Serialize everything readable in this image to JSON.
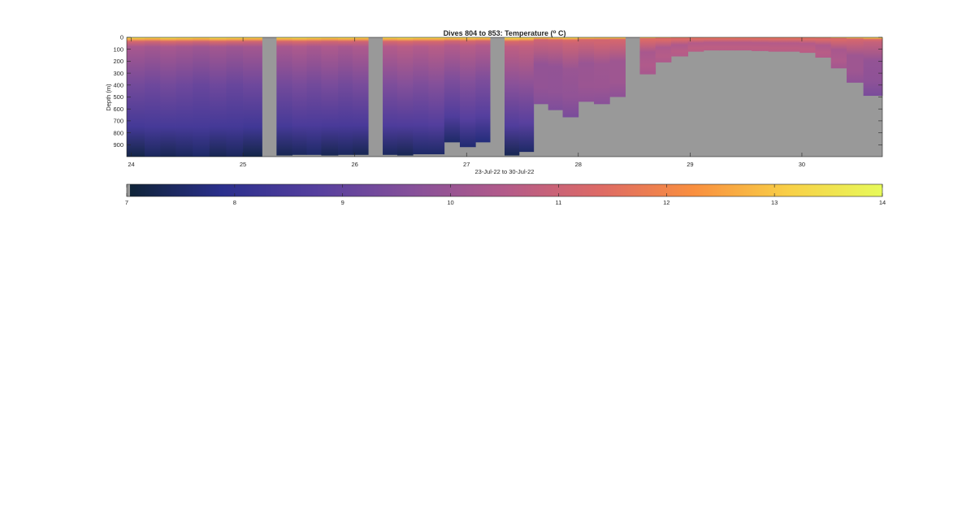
{
  "chart_data": {
    "type": "heatmap",
    "title_main": "Dives 804 to 853: Temperature (",
    "title_unit_sup": "o",
    "title_unit": " C)",
    "xlabel": "23-Jul-22 to 30-Jul-22",
    "ylabel": "Depth (m)",
    "x_range": [
      23.96,
      30.72
    ],
    "y_range": [
      0,
      1000
    ],
    "y_reversed": true,
    "x_ticks": [
      24,
      25,
      26,
      27,
      28,
      29,
      30
    ],
    "y_ticks": [
      0,
      100,
      200,
      300,
      400,
      500,
      600,
      700,
      800,
      900
    ],
    "y_tick_labels": [
      "0",
      "100",
      "200",
      "300",
      "400",
      "500",
      "600",
      "700",
      "800",
      "900"
    ],
    "colorbar": {
      "range": [
        7,
        14
      ],
      "ticks": [
        7,
        8,
        9,
        10,
        11,
        12,
        13,
        14
      ],
      "colors": [
        "#0e2335",
        "#2a2f8c",
        "#553f9e",
        "#85509a",
        "#b35b8a",
        "#dd6a66",
        "#f98f3f",
        "#f8cf47",
        "#e7fa5a"
      ],
      "nodata_color": "#999999"
    },
    "nodata_color": "#999999",
    "gap_intervals_days": [
      [
        25.17,
        25.3
      ],
      [
        26.12,
        26.25
      ],
      [
        27.21,
        27.34
      ],
      [
        28.42,
        28.55
      ]
    ],
    "dive_profiles": {
      "x_start": [
        23.96,
        24.12,
        24.26,
        24.4,
        24.55,
        24.7,
        24.85,
        25.0,
        25.3,
        25.44,
        25.57,
        25.7,
        25.85,
        25.98,
        26.25,
        26.38,
        26.52,
        26.66,
        26.8,
        26.94,
        27.08,
        27.34,
        27.47,
        27.6,
        27.73,
        27.86,
        28.0,
        28.14,
        28.28,
        28.55,
        28.69,
        28.83,
        28.98,
        29.12,
        29.26,
        29.4,
        29.55,
        29.7,
        29.84,
        29.98,
        30.12,
        30.26,
        30.4,
        30.55
      ],
      "x_end": [
        24.12,
        24.26,
        24.4,
        24.55,
        24.7,
        24.85,
        25.0,
        25.17,
        25.44,
        25.57,
        25.7,
        25.85,
        25.98,
        26.12,
        26.38,
        26.52,
        26.66,
        26.8,
        26.94,
        27.08,
        27.21,
        27.47,
        27.6,
        27.73,
        27.86,
        28.0,
        28.14,
        28.28,
        28.42,
        28.69,
        28.83,
        28.98,
        29.12,
        29.26,
        29.4,
        29.55,
        29.7,
        29.84,
        29.98,
        30.12,
        30.26,
        30.4,
        30.55,
        30.72
      ],
      "max_depth_m": [
        1000,
        1000,
        1000,
        1000,
        1000,
        1000,
        1000,
        1000,
        990,
        985,
        985,
        990,
        985,
        985,
        985,
        990,
        980,
        980,
        880,
        920,
        880,
        990,
        960,
        560,
        610,
        670,
        540,
        560,
        500,
        310,
        210,
        160,
        120,
        110,
        110,
        110,
        115,
        120,
        120,
        130,
        170,
        260,
        380,
        490
      ],
      "bottom_temp_c": [
        7.2,
        7.4,
        7.3,
        7.4,
        7.5,
        7.3,
        7.4,
        7.2,
        7.3,
        7.4,
        7.5,
        7.3,
        7.4,
        7.3,
        7.4,
        7.3,
        7.5,
        7.5,
        7.5,
        7.6,
        7.7,
        7.3,
        7.5,
        9.6,
        9.5,
        9.4,
        9.8,
        9.7,
        9.8,
        10.3,
        10.4,
        10.5,
        10.6,
        10.6,
        10.6,
        10.6,
        10.6,
        10.6,
        10.6,
        10.6,
        10.5,
        10.2,
        9.8,
        9.4
      ],
      "mid_temp_c": [
        9.3,
        9.2,
        9.3,
        9.2,
        9.1,
        9.2,
        9.1,
        9.2,
        9.3,
        9.4,
        9.3,
        9.4,
        9.3,
        9.4,
        9.5,
        9.6,
        9.5,
        9.6,
        9.5,
        9.6,
        9.5,
        9.7,
        9.8,
        9.9,
        9.9,
        10.0,
        10.0,
        10.1,
        10.1,
        10.3,
        10.4,
        10.4,
        10.5,
        10.5,
        10.5,
        10.5,
        10.5,
        10.5,
        10.5,
        10.5,
        10.4,
        10.3,
        10.1,
        9.9
      ],
      "surface_temp_c": [
        13.8,
        13.7,
        13.9,
        13.8,
        13.7,
        13.9,
        13.8,
        13.7,
        13.8,
        13.9,
        13.8,
        13.7,
        13.8,
        13.7,
        13.8,
        13.9,
        13.8,
        13.8,
        13.7,
        13.8,
        13.7,
        13.9,
        13.8,
        13.7,
        13.8,
        13.9,
        13.8,
        13.7,
        13.8,
        13.9,
        13.8,
        13.8,
        13.7,
        13.8,
        13.9,
        13.8,
        13.7,
        13.8,
        13.9,
        13.8,
        13.7,
        13.8,
        13.8,
        13.9
      ]
    }
  }
}
